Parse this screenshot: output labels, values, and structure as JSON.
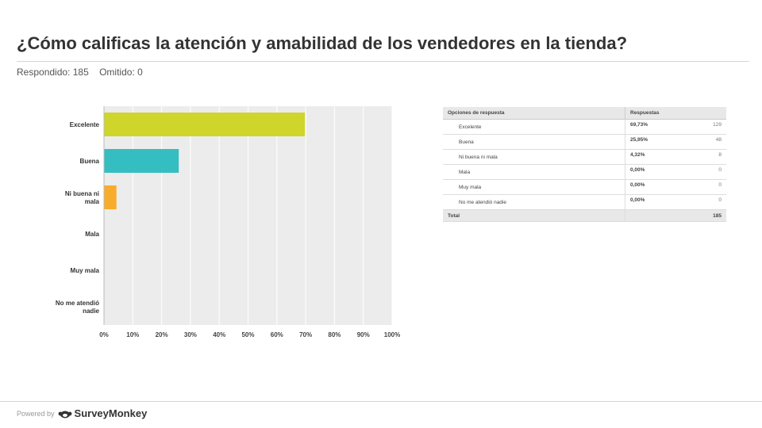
{
  "slide": {
    "title": "¿Cómo calificas la atención y amabilidad de los vendedores en la tienda?",
    "answered": "Respondido: 185",
    "skipped": "Omitido: 0"
  },
  "chart_data": {
    "type": "bar",
    "orientation": "horizontal",
    "categories": [
      "Excelente",
      "Buena",
      "Ni buena ni mala",
      "Mala",
      "Muy mala",
      "No me atendió nadie"
    ],
    "category_lines": [
      [
        "Excelente"
      ],
      [
        "Buena"
      ],
      [
        "Ni buena ni",
        "mala"
      ],
      [
        "Mala"
      ],
      [
        "Muy mala"
      ],
      [
        "No me atendió",
        "nadie"
      ]
    ],
    "values": [
      69.73,
      25.95,
      4.32,
      0,
      0,
      0
    ],
    "colors": [
      "#cfd52b",
      "#35bec1",
      "#f7ac2b",
      "#cfd52b",
      "#cfd52b",
      "#cfd52b"
    ],
    "xlim": [
      0,
      100
    ],
    "x_ticks": [
      "0%",
      "10%",
      "20%",
      "30%",
      "40%",
      "50%",
      "60%",
      "70%",
      "80%",
      "90%",
      "100%"
    ],
    "grid": true,
    "plot_background": "#ececec"
  },
  "table": {
    "header_option": "Opciones de respuesta",
    "header_responses": "Respuestas",
    "rows": [
      {
        "option": "Excelente",
        "percent": "69,73%",
        "count": "129"
      },
      {
        "option": "Buena",
        "percent": "25,95%",
        "count": "48"
      },
      {
        "option": "Ni buena ni mala",
        "percent": "4,32%",
        "count": "8"
      },
      {
        "option": "Mala",
        "percent": "0,00%",
        "count": "0"
      },
      {
        "option": "Muy mala",
        "percent": "0,00%",
        "count": "0"
      },
      {
        "option": "No me atendió nadie",
        "percent": "0,00%",
        "count": "0"
      }
    ],
    "total_label": "Total",
    "total_value": "185"
  },
  "footer": {
    "powered_by": "Powered by",
    "brand": "SurveyMonkey"
  }
}
